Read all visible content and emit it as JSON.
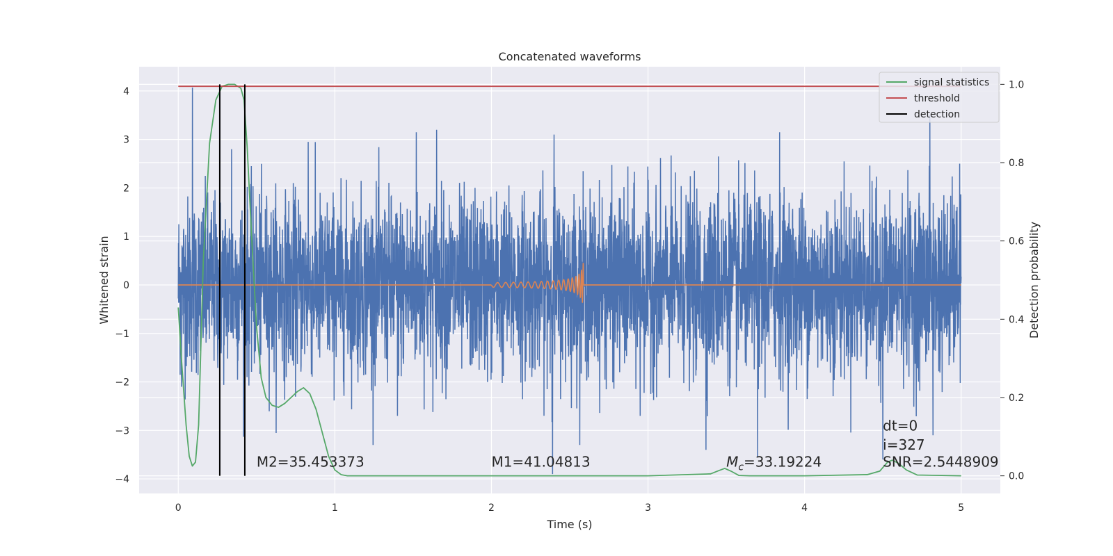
{
  "chart_data": {
    "type": "line",
    "title": "Concatenated waveforms",
    "xlabel": "Time (s)",
    "ylabel": "Whitened strain",
    "y2label": "Detection probability",
    "xlim": [
      -0.25,
      5.25
    ],
    "ylim": [
      -4.3,
      4.5
    ],
    "y2lim": [
      -0.045,
      1.045
    ],
    "xticks": [
      0,
      1,
      2,
      3,
      4,
      5
    ],
    "yticks": [
      -4,
      -3,
      -2,
      -1,
      0,
      1,
      2,
      3,
      4
    ],
    "y2ticks": [
      0.0,
      0.2,
      0.4,
      0.6,
      0.8,
      1.0
    ],
    "grid": true,
    "legend_position": "top-right",
    "legend": [
      {
        "label": "signal statistics",
        "color": "#55a868"
      },
      {
        "label": "threshold",
        "color": "#c44e52"
      },
      {
        "label": "detection",
        "color": "#000000"
      }
    ],
    "series": [
      {
        "kind": "noise",
        "color": "#4c72b0",
        "x_range": [
          0,
          5
        ],
        "approx_std": 0.9,
        "peaks": [
          {
            "x": 0.09,
            "y": 4.07
          },
          {
            "x": 0.02,
            "y": -2.1
          },
          {
            "x": 0.34,
            "y": 2.8
          },
          {
            "x": 0.83,
            "y": 2.95
          },
          {
            "x": 1.65,
            "y": 3.2
          },
          {
            "x": 1.52,
            "y": 3.15
          },
          {
            "x": 2.39,
            "y": -3.9
          },
          {
            "x": 2.4,
            "y": 3.1
          },
          {
            "x": 3.37,
            "y": -3.4
          },
          {
            "x": 3.7,
            "y": -3.55
          },
          {
            "x": 3.84,
            "y": 3.15
          },
          {
            "x": 4.8,
            "y": 3.5
          },
          {
            "x": 4.82,
            "y": -3.1
          },
          {
            "x": 4.5,
            "y": -3.6
          },
          {
            "x": 4.99,
            "y": 2.5
          },
          {
            "x": 2.95,
            "y": -2.7
          },
          {
            "x": 3.45,
            "y": 2.65
          },
          {
            "x": 1.4,
            "y": -2.7
          }
        ]
      },
      {
        "kind": "chirp",
        "color": "#dd8452",
        "x_start": 2.0,
        "x_end": 2.59,
        "amplitude_end": 0.6,
        "baseline": 0
      },
      {
        "name": "signal statistics",
        "color": "#55a868",
        "axis": "y2",
        "x": [
          0.0,
          0.02,
          0.05,
          0.07,
          0.09,
          0.11,
          0.13,
          0.16,
          0.2,
          0.24,
          0.28,
          0.32,
          0.36,
          0.4,
          0.42,
          0.44,
          0.47,
          0.5,
          0.53,
          0.56,
          0.6,
          0.64,
          0.68,
          0.72,
          0.76,
          0.8,
          0.84,
          0.88,
          0.92,
          0.96,
          1.0,
          1.04,
          1.08,
          1.15,
          1.5,
          2.0,
          2.5,
          3.0,
          3.4,
          3.45,
          3.49,
          3.53,
          3.58,
          3.65,
          4.0,
          4.4,
          4.48,
          4.53,
          4.56,
          4.6,
          4.65,
          4.72,
          5.0
        ],
        "y": [
          0.43,
          0.3,
          0.13,
          0.05,
          0.025,
          0.035,
          0.13,
          0.55,
          0.85,
          0.96,
          0.995,
          1.0,
          1.0,
          0.99,
          0.96,
          0.84,
          0.6,
          0.38,
          0.25,
          0.2,
          0.18,
          0.175,
          0.185,
          0.2,
          0.215,
          0.225,
          0.21,
          0.17,
          0.11,
          0.05,
          0.015,
          0.003,
          0.0,
          0.0,
          0.0,
          0.0,
          0.0,
          0.0,
          0.005,
          0.013,
          0.019,
          0.012,
          0.001,
          0.0,
          0.0,
          0.003,
          0.012,
          0.035,
          0.04,
          0.032,
          0.015,
          0.002,
          0.0
        ]
      },
      {
        "name": "threshold",
        "color": "#c44e52",
        "axis": "y2",
        "x": [
          0,
          5
        ],
        "y": [
          0.995,
          0.995
        ]
      }
    ],
    "detections": [
      0.265,
      0.425
    ],
    "detection_ylim": [
      0.0,
      1.0
    ],
    "annotations": [
      {
        "text": "M2=35.453373",
        "x": 0.5,
        "y": -3.75
      },
      {
        "text": "M1=41.04813",
        "x": 2.0,
        "y": -3.75
      },
      {
        "text_prefix": "M",
        "text_sub": "c",
        "text_suffix": "=33.19224",
        "x": 3.5,
        "y": -3.75
      },
      {
        "text": "SNR=2.5448909",
        "x": 4.5,
        "y": -3.75
      },
      {
        "text": "i=327",
        "x": 4.5,
        "y": -3.4
      },
      {
        "text": "dt=0",
        "x": 4.5,
        "y": -3.0
      }
    ]
  }
}
